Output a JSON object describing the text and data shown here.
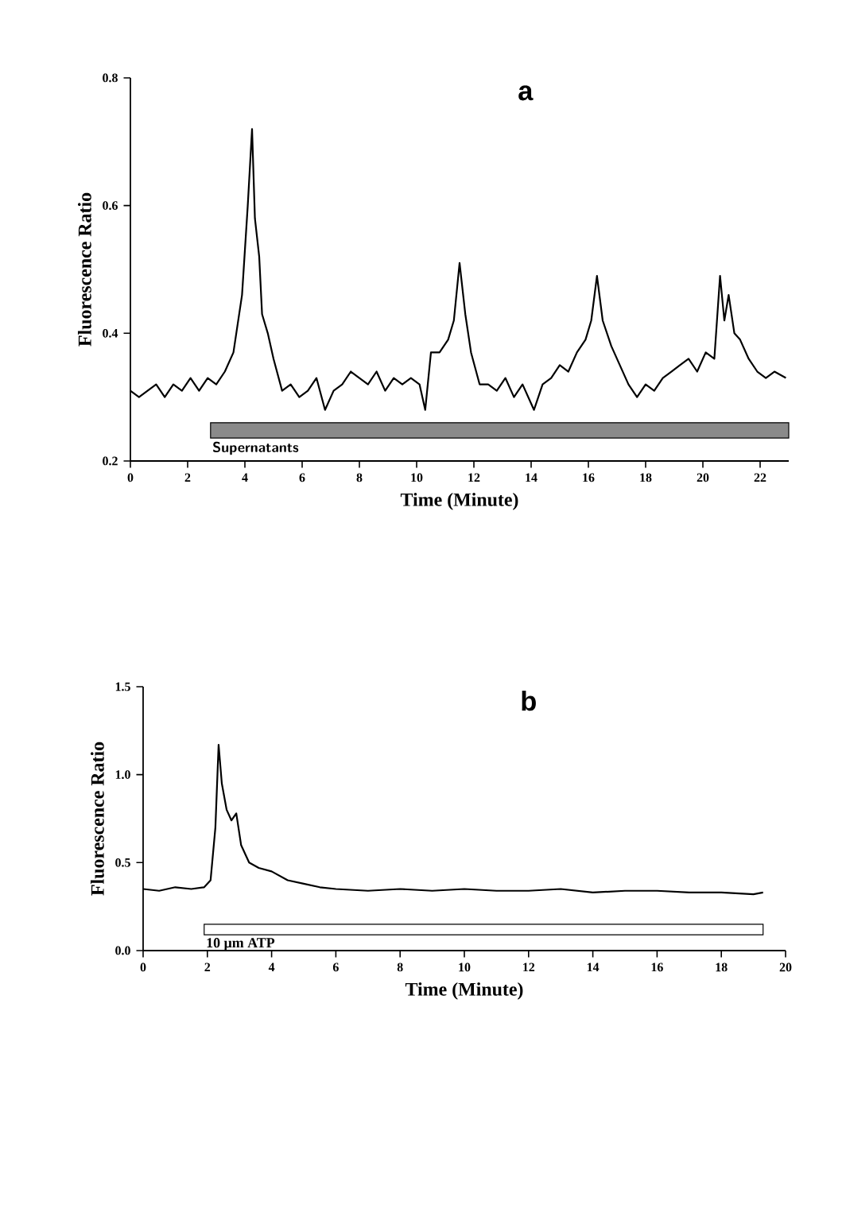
{
  "chart_data": [
    {
      "type": "line",
      "title": "a",
      "xlabel": "Time (Minute)",
      "ylabel": "Fluorescence Ratio",
      "xlim": [
        0,
        23
      ],
      "xticks": [
        0,
        2,
        4,
        6,
        8,
        10,
        12,
        14,
        16,
        18,
        20,
        22
      ],
      "ylim": [
        0.2,
        0.8
      ],
      "yticks": [
        0.2,
        0.4,
        0.6,
        0.8
      ],
      "x": [
        0,
        0.3,
        0.6,
        0.9,
        1.2,
        1.5,
        1.8,
        2.1,
        2.4,
        2.7,
        3.0,
        3.3,
        3.6,
        3.9,
        4.1,
        4.25,
        4.35,
        4.5,
        4.6,
        4.8,
        5.0,
        5.3,
        5.6,
        5.9,
        6.2,
        6.5,
        6.8,
        7.1,
        7.4,
        7.7,
        8.0,
        8.3,
        8.6,
        8.9,
        9.2,
        9.5,
        9.8,
        10.1,
        10.3,
        10.5,
        10.8,
        11.1,
        11.3,
        11.5,
        11.7,
        11.9,
        12.2,
        12.5,
        12.8,
        13.1,
        13.4,
        13.7,
        14.0,
        14.1,
        14.4,
        14.7,
        15.0,
        15.3,
        15.6,
        15.9,
        16.1,
        16.3,
        16.5,
        16.8,
        17.1,
        17.4,
        17.7,
        18.0,
        18.3,
        18.6,
        18.9,
        19.2,
        19.5,
        19.8,
        20.1,
        20.4,
        20.6,
        20.75,
        20.9,
        21.1,
        21.3,
        21.6,
        21.9,
        22.2,
        22.5,
        22.9
      ],
      "series": [
        {
          "color": "#000000",
          "values": [
            0.31,
            0.3,
            0.31,
            0.32,
            0.3,
            0.32,
            0.31,
            0.33,
            0.31,
            0.33,
            0.32,
            0.34,
            0.37,
            0.46,
            0.6,
            0.72,
            0.58,
            0.52,
            0.43,
            0.4,
            0.36,
            0.31,
            0.32,
            0.3,
            0.31,
            0.33,
            0.28,
            0.31,
            0.32,
            0.34,
            0.33,
            0.32,
            0.34,
            0.31,
            0.33,
            0.32,
            0.33,
            0.32,
            0.28,
            0.37,
            0.37,
            0.39,
            0.42,
            0.51,
            0.43,
            0.37,
            0.32,
            0.32,
            0.31,
            0.33,
            0.3,
            0.32,
            0.29,
            0.28,
            0.32,
            0.33,
            0.35,
            0.34,
            0.37,
            0.39,
            0.42,
            0.49,
            0.42,
            0.38,
            0.35,
            0.32,
            0.3,
            0.32,
            0.31,
            0.33,
            0.34,
            0.35,
            0.36,
            0.34,
            0.37,
            0.36,
            0.49,
            0.42,
            0.46,
            0.4,
            0.39,
            0.36,
            0.34,
            0.33,
            0.34,
            0.33
          ]
        }
      ],
      "bands": [
        {
          "axis": "x",
          "from": 2.8,
          "to": 23,
          "label": "Supernatants",
          "color": "#8a8a8a"
        }
      ]
    },
    {
      "type": "line",
      "title": "b",
      "xlabel": "Time (Minute)",
      "ylabel": "Fluorescence Ratio",
      "xlim": [
        0,
        20
      ],
      "xticks": [
        0,
        2,
        4,
        6,
        8,
        10,
        12,
        14,
        16,
        18,
        20
      ],
      "ylim": [
        0,
        1.5
      ],
      "yticks": [
        {
          "value": 0,
          "label": "0.0"
        },
        0.5,
        {
          "value": 1,
          "label": "1.0"
        },
        1.5
      ],
      "x": [
        0,
        0.5,
        1.0,
        1.5,
        1.9,
        2.1,
        2.25,
        2.35,
        2.45,
        2.6,
        2.75,
        2.9,
        3.05,
        3.3,
        3.6,
        4.0,
        4.5,
        5.0,
        5.5,
        6.0,
        7.0,
        8.0,
        9.0,
        10.0,
        11.0,
        12.0,
        13.0,
        14.0,
        15.0,
        16.0,
        17.0,
        18.0,
        19.0,
        19.3
      ],
      "series": [
        {
          "color": "#000000",
          "values": [
            0.35,
            0.34,
            0.36,
            0.35,
            0.36,
            0.4,
            0.7,
            1.17,
            0.95,
            0.8,
            0.74,
            0.78,
            0.6,
            0.5,
            0.47,
            0.45,
            0.4,
            0.38,
            0.36,
            0.35,
            0.34,
            0.35,
            0.34,
            0.35,
            0.34,
            0.34,
            0.35,
            0.33,
            0.34,
            0.34,
            0.33,
            0.33,
            0.32,
            0.33
          ]
        }
      ],
      "bands": [
        {
          "axis": "x",
          "from": 1.9,
          "to": 19.3,
          "label": "10 μm ATP",
          "color": "#ffffff"
        }
      ]
    }
  ]
}
